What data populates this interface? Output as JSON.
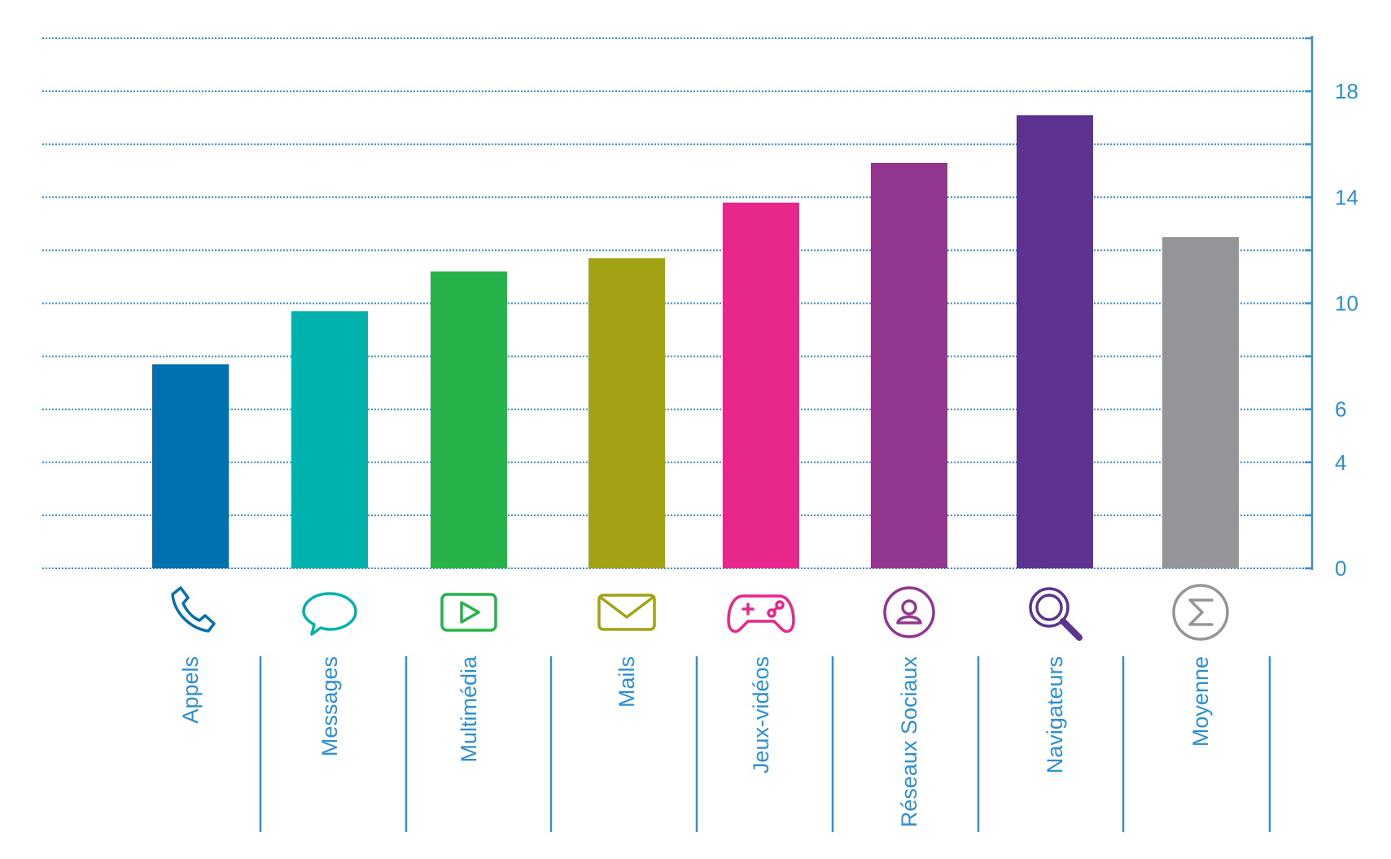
{
  "chart_data": {
    "type": "bar",
    "categories": [
      "Appels",
      "Messages",
      "Multimédia",
      "Mails",
      "Jeux-vidéos",
      "Réseaux Sociaux",
      "Navigateurs",
      "Moyenne"
    ],
    "values": [
      7.7,
      9.7,
      11.2,
      11.7,
      13.8,
      15.3,
      17.1,
      12.5
    ],
    "colors": [
      "#0070b0",
      "#00b2ad",
      "#27b24a",
      "#a2a214",
      "#e8278b",
      "#933690",
      "#5c3391",
      "#939598"
    ],
    "icons": [
      "phone-icon",
      "speech-bubble-icon",
      "play-icon",
      "envelope-icon",
      "gamepad-icon",
      "user-circle-icon",
      "magnifier-icon",
      "sigma-icon"
    ],
    "ylim": [
      0,
      20
    ],
    "y_ticks": [
      0,
      4,
      6,
      10,
      14,
      18
    ],
    "y_axis_side": "right",
    "grid": true,
    "grid_color": "#3a8fc8",
    "label_color": "#2c8fcf"
  }
}
